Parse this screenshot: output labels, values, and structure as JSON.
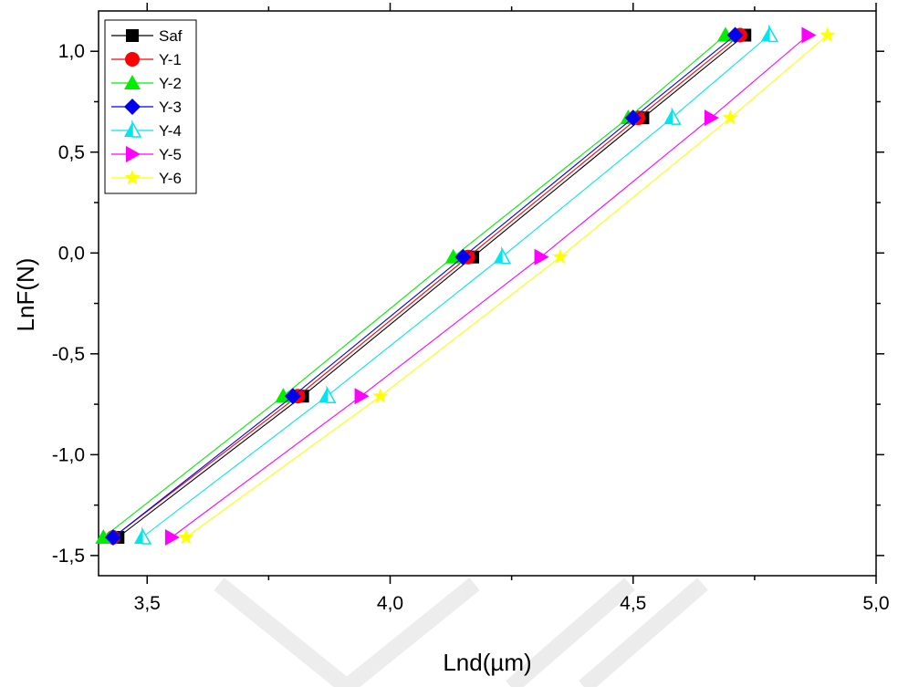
{
  "chart_data": {
    "type": "line",
    "title": "",
    "xlabel": "Lnd(µm)",
    "ylabel": "LnF(N)",
    "xlim": [
      3.4,
      5.0
    ],
    "ylim": [
      -1.6,
      1.2
    ],
    "x_ticks": [
      "3,5",
      "4,0",
      "4,5",
      "5,0"
    ],
    "x_tick_values": [
      3.5,
      4.0,
      4.5,
      5.0
    ],
    "y_ticks": [
      "1,0",
      "0,5",
      "0,0",
      "-0,5",
      "-1,0",
      "-1,5"
    ],
    "y_tick_values": [
      1.0,
      0.5,
      0.0,
      -0.5,
      -1.0,
      -1.5
    ],
    "grid": false,
    "legend_position": "top-left",
    "y": [
      -1.41,
      -0.71,
      -0.02,
      0.67,
      1.08
    ],
    "series": [
      {
        "name": "Saf",
        "color": "#000000",
        "marker": "square",
        "x": [
          3.44,
          3.82,
          4.17,
          4.52,
          4.73
        ]
      },
      {
        "name": "Y-1",
        "color": "#ff0000",
        "marker": "circle",
        "x": [
          3.43,
          3.81,
          4.16,
          4.51,
          4.72
        ]
      },
      {
        "name": "Y-2",
        "color": "#00ee00",
        "marker": "triangle-up",
        "x": [
          3.41,
          3.78,
          4.13,
          4.49,
          4.69
        ]
      },
      {
        "name": "Y-3",
        "color": "#0000ee",
        "marker": "diamond",
        "x": [
          3.43,
          3.8,
          4.15,
          4.5,
          4.71
        ]
      },
      {
        "name": "Y-4",
        "color": "#00e5ee",
        "marker": "half-triangle-up",
        "x": [
          3.49,
          3.87,
          4.23,
          4.58,
          4.78
        ]
      },
      {
        "name": "Y-5",
        "color": "#ff00ff",
        "marker": "triangle-right",
        "x": [
          3.55,
          3.94,
          4.31,
          4.66,
          4.86
        ]
      },
      {
        "name": "Y-6",
        "color": "#ffff00",
        "marker": "star",
        "x": [
          3.58,
          3.98,
          4.35,
          4.7,
          4.9
        ]
      }
    ]
  }
}
